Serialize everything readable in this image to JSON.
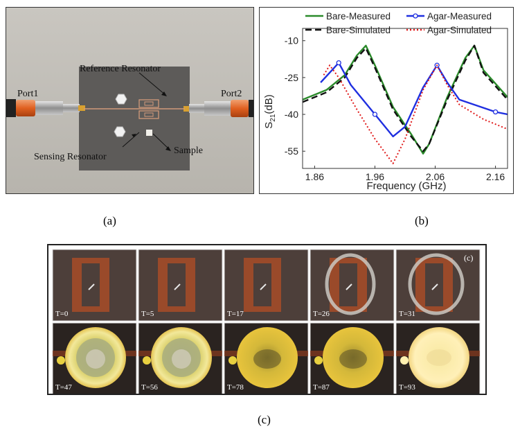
{
  "captions": {
    "a": "(a)",
    "b": "(b)",
    "c": "(c)"
  },
  "panel_a": {
    "labels": {
      "port1": "Port1",
      "port2": "Port2",
      "reference": "Reference Resonator",
      "sensing": "Sensing Resonator",
      "sample": "Sample"
    }
  },
  "chart_data": {
    "type": "line",
    "xlabel": "Frequency (GHz)",
    "ylabel": "S21(dB)",
    "xlim": [
      1.84,
      2.18
    ],
    "ylim": [
      -62,
      -5
    ],
    "xticks": [
      1.86,
      1.96,
      2.06,
      2.16
    ],
    "yticks": [
      -10,
      -25,
      -40,
      -55
    ],
    "legend_placement": "top",
    "series": [
      {
        "name": "Bare-Measured",
        "color": "#2a8a2a",
        "style": "solid",
        "x": [
          1.84,
          1.88,
          1.91,
          1.93,
          1.945,
          1.96,
          1.99,
          2.02,
          2.04,
          2.05,
          2.08,
          2.11,
          2.125,
          2.14,
          2.18
        ],
        "y": [
          -34,
          -30,
          -24,
          -16,
          -12,
          -20,
          -37,
          -48,
          -56,
          -52,
          -33,
          -17,
          -12,
          -22,
          -33
        ]
      },
      {
        "name": "Bare-Simulated",
        "color": "#111111",
        "style": "dashed",
        "x": [
          1.84,
          1.88,
          1.91,
          1.93,
          1.945,
          1.96,
          1.99,
          2.02,
          2.04,
          2.05,
          2.08,
          2.11,
          2.125,
          2.14,
          2.18
        ],
        "y": [
          -35,
          -31,
          -25,
          -17,
          -13,
          -21,
          -38,
          -49,
          -55,
          -52,
          -34,
          -18,
          -12,
          -23,
          -34
        ]
      },
      {
        "name": "Agar-Measured",
        "color": "#1f2fe0",
        "style": "solid",
        "x": [
          1.87,
          1.885,
          1.9,
          1.92,
          1.96,
          1.99,
          2.01,
          2.04,
          2.063,
          2.08,
          2.1,
          2.16,
          2.18
        ],
        "y": [
          -27,
          -23,
          -19,
          -28,
          -40,
          -49,
          -45,
          -29,
          -20,
          -27,
          -34,
          -39,
          -40
        ]
      },
      {
        "name": "Agar-Simulated",
        "color": "#e01a1a",
        "style": "dotted",
        "x": [
          1.875,
          1.885,
          1.9,
          1.93,
          1.96,
          1.99,
          2.01,
          2.04,
          2.063,
          2.08,
          2.1,
          2.14,
          2.18
        ],
        "y": [
          -24,
          -20,
          -25,
          -38,
          -50,
          -60,
          -50,
          -30,
          -20,
          -28,
          -36,
          -42,
          -46
        ]
      }
    ]
  },
  "panel_c": {
    "panel_label": "(c)",
    "timestamps": [
      "T=0",
      "T=5",
      "T=17",
      "T=26",
      "T=31",
      "T=47",
      "T=56",
      "T=78",
      "T=87",
      "T=93"
    ]
  }
}
